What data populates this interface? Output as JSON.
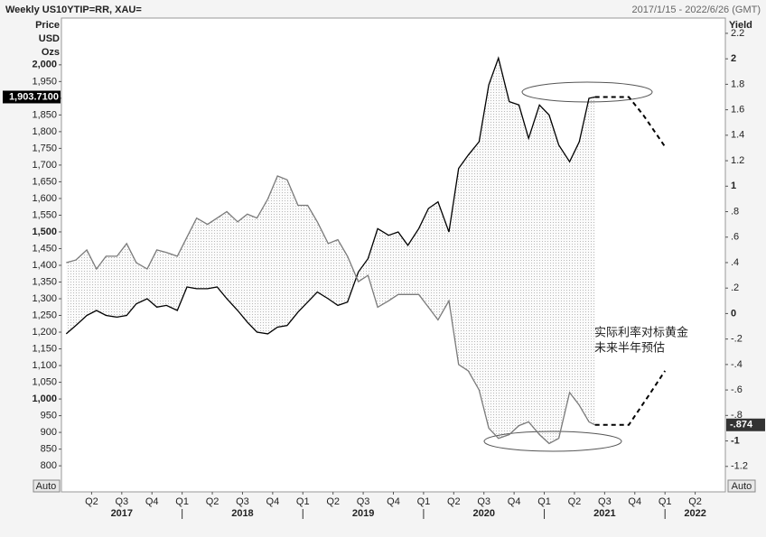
{
  "chart_data": {
    "type": "line",
    "title": "Weekly US10YTIP=RR, XAU=",
    "date_range": "2017/1/15 - 2022/6/26 (GMT)",
    "y_label": [
      "Price",
      "USD",
      "Ozs"
    ],
    "y2_label": "Yield",
    "annotation": [
      "实际利率对标黄金",
      "未来半年预估"
    ],
    "scale_buttons": [
      "Auto",
      "Auto"
    ],
    "xlim": [
      2017,
      2022.5
    ],
    "xticks": [
      {
        "value": 2017.25,
        "label": "Q2"
      },
      {
        "value": 2017.5,
        "label": "Q3"
      },
      {
        "value": 2017.75,
        "label": "Q4"
      },
      {
        "value": 2018,
        "label": "Q1"
      },
      {
        "value": 2018.25,
        "label": "Q2"
      },
      {
        "value": 2018.5,
        "label": "Q3"
      },
      {
        "value": 2018.75,
        "label": "Q4"
      },
      {
        "value": 2019,
        "label": "Q1"
      },
      {
        "value": 2019.25,
        "label": "Q2"
      },
      {
        "value": 2019.5,
        "label": "Q3"
      },
      {
        "value": 2019.75,
        "label": "Q4"
      },
      {
        "value": 2020,
        "label": "Q1"
      },
      {
        "value": 2020.25,
        "label": "Q2"
      },
      {
        "value": 2020.5,
        "label": "Q3"
      },
      {
        "value": 2020.75,
        "label": "Q4"
      },
      {
        "value": 2021,
        "label": "Q1"
      },
      {
        "value": 2021.25,
        "label": "Q2"
      },
      {
        "value": 2021.5,
        "label": "Q3"
      },
      {
        "value": 2021.75,
        "label": "Q4"
      },
      {
        "value": 2022,
        "label": "Q1"
      },
      {
        "value": 2022.25,
        "label": "Q2"
      }
    ],
    "year_labels": [
      {
        "value": 2017.5,
        "label": "2017"
      },
      {
        "value": 2018.5,
        "label": "2018"
      },
      {
        "value": 2019.5,
        "label": "2019"
      },
      {
        "value": 2020.5,
        "label": "2020"
      },
      {
        "value": 2021.5,
        "label": "2021"
      },
      {
        "value": 2022.25,
        "label": "2022"
      }
    ],
    "year_starts": [
      2018,
      2019,
      2020,
      2021,
      2022
    ],
    "ylim": [
      722,
      2140
    ],
    "yticks": [
      800,
      850,
      900,
      950,
      {
        "value": 1000,
        "label": "1,000"
      },
      {
        "value": 1050,
        "label": "1,050"
      },
      {
        "value": 1100,
        "label": "1,100"
      },
      {
        "value": 1150,
        "label": "1,150"
      },
      {
        "value": 1200,
        "label": "1,200"
      },
      {
        "value": 1250,
        "label": "1,250"
      },
      {
        "value": 1300,
        "label": "1,300"
      },
      {
        "value": 1350,
        "label": "1,350"
      },
      {
        "value": 1400,
        "label": "1,400"
      },
      {
        "value": 1450,
        "label": "1,450"
      },
      {
        "value": 1500,
        "label": "1,500"
      },
      {
        "value": 1550,
        "label": "1,550"
      },
      {
        "value": 1600,
        "label": "1,600"
      },
      {
        "value": 1650,
        "label": "1,650"
      },
      {
        "value": 1700,
        "label": "1,700"
      },
      {
        "value": 1750,
        "label": "1,750"
      },
      {
        "value": 1800,
        "label": "1,800"
      },
      {
        "value": 1850,
        "label": "1,850"
      },
      {
        "value": 1900,
        "label": "1,900"
      },
      {
        "value": 1950,
        "label": "1,950"
      },
      {
        "value": 2000,
        "label": "2,000"
      }
    ],
    "y_bold_ticks": [
      1000,
      1500,
      2000
    ],
    "y2lim": [
      -1.4,
      2.32
    ],
    "y2ticks": [
      2.2,
      2,
      1.8,
      1.6,
      1.4,
      1.2,
      1,
      {
        "value": 0.8,
        "label": ".8"
      },
      {
        "value": 0.6,
        "label": ".6"
      },
      {
        "value": 0.4,
        "label": ".4"
      },
      {
        "value": 0.2,
        "label": ".2"
      },
      0,
      {
        "value": -0.2,
        "label": "-.2"
      },
      {
        "value": -0.4,
        "label": "-.4"
      },
      {
        "value": -0.6,
        "label": "-.6"
      },
      {
        "value": -0.8,
        "label": "-.8"
      },
      -1,
      -1.2
    ],
    "price_marker": {
      "value": 1903.71,
      "label": "1,903.7100"
    },
    "yield_marker": {
      "value": -0.874,
      "label": "-.874"
    },
    "series": [
      {
        "color": "#000000",
        "axis": "y",
        "x": [
          2017.04,
          2017.12,
          2017.21,
          2017.29,
          2017.37,
          2017.46,
          2017.54,
          2017.62,
          2017.71,
          2017.79,
          2017.87,
          2017.96,
          2018.04,
          2018.12,
          2018.21,
          2018.29,
          2018.37,
          2018.46,
          2018.54,
          2018.62,
          2018.71,
          2018.79,
          2018.87,
          2018.96,
          2019.04,
          2019.12,
          2019.21,
          2019.29,
          2019.37,
          2019.46,
          2019.54,
          2019.62,
          2019.71,
          2019.79,
          2019.87,
          2019.96,
          2020.04,
          2020.12,
          2020.21,
          2020.29,
          2020.37,
          2020.46,
          2020.54,
          2020.62,
          2020.71,
          2020.79,
          2020.87,
          2020.96,
          2021.04,
          2021.12,
          2021.21,
          2021.29,
          2021.37,
          2021.42
        ],
        "values": [
          1195,
          1220,
          1250,
          1265,
          1250,
          1245,
          1250,
          1285,
          1300,
          1275,
          1280,
          1265,
          1335,
          1330,
          1330,
          1335,
          1300,
          1265,
          1230,
          1200,
          1195,
          1215,
          1220,
          1260,
          1290,
          1320,
          1300,
          1280,
          1290,
          1380,
          1420,
          1510,
          1490,
          1500,
          1460,
          1510,
          1570,
          1590,
          1500,
          1690,
          1730,
          1770,
          1940,
          2020,
          1890,
          1880,
          1780,
          1880,
          1850,
          1760,
          1710,
          1770,
          1900,
          1903.71
        ]
      },
      {
        "color": "#7a7a7a",
        "axis": "y2",
        "x": [
          2017.04,
          2017.12,
          2017.21,
          2017.29,
          2017.37,
          2017.46,
          2017.54,
          2017.62,
          2017.71,
          2017.79,
          2017.87,
          2017.96,
          2018.04,
          2018.12,
          2018.21,
          2018.29,
          2018.37,
          2018.46,
          2018.54,
          2018.62,
          2018.71,
          2018.79,
          2018.87,
          2018.96,
          2019.04,
          2019.12,
          2019.21,
          2019.29,
          2019.37,
          2019.46,
          2019.54,
          2019.62,
          2019.71,
          2019.79,
          2019.87,
          2019.96,
          2020.04,
          2020.12,
          2020.21,
          2020.29,
          2020.37,
          2020.46,
          2020.54,
          2020.62,
          2020.71,
          2020.79,
          2020.87,
          2020.96,
          2021.04,
          2021.12,
          2021.21,
          2021.29,
          2021.37,
          2021.42
        ],
        "values": [
          0.4,
          0.42,
          0.5,
          0.35,
          0.45,
          0.45,
          0.55,
          0.4,
          0.35,
          0.5,
          0.48,
          0.45,
          0.6,
          0.75,
          0.7,
          0.75,
          0.8,
          0.72,
          0.78,
          0.75,
          0.9,
          1.08,
          1.05,
          0.85,
          0.85,
          0.72,
          0.55,
          0.58,
          0.45,
          0.25,
          0.3,
          0.05,
          0.1,
          0.15,
          0.15,
          0.15,
          0.05,
          -0.05,
          0.1,
          -0.4,
          -0.45,
          -0.6,
          -0.9,
          -0.98,
          -0.95,
          -0.88,
          -0.85,
          -0.95,
          -1.02,
          -0.98,
          -0.62,
          -0.72,
          -0.85,
          -0.874
        ]
      },
      {
        "color": "#000000",
        "axis": "y",
        "dash": true,
        "x": [
          2021.42,
          2021.7,
          2021.82,
          2022.0
        ],
        "values": [
          1903.71,
          1903.71,
          1850,
          1755
        ]
      },
      {
        "color": "#000000",
        "axis": "y2",
        "dash": true,
        "x": [
          2021.42,
          2021.7,
          2021.86,
          2022.0
        ],
        "values": [
          -0.874,
          -0.874,
          -0.65,
          -0.45
        ]
      }
    ]
  }
}
